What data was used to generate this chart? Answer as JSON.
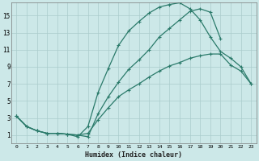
{
  "xlabel": "Humidex (Indice chaleur)",
  "bg_color": "#cce8e8",
  "grid_color": "#aacccc",
  "line_color": "#2a7a6a",
  "xlim": [
    -0.5,
    23.5
  ],
  "ylim": [
    0,
    16.5
  ],
  "xticks": [
    0,
    1,
    2,
    3,
    4,
    5,
    6,
    7,
    8,
    9,
    10,
    11,
    12,
    13,
    14,
    15,
    16,
    17,
    18,
    19,
    20,
    21,
    22,
    23
  ],
  "yticks": [
    1,
    3,
    5,
    7,
    9,
    11,
    13,
    15
  ],
  "line1_x": [
    0,
    1,
    2,
    3,
    4,
    5,
    6,
    7,
    8,
    9,
    10,
    11,
    12,
    13,
    14,
    15,
    16,
    17,
    18,
    19,
    20,
    21,
    22,
    23
  ],
  "line1_y": [
    3.2,
    2.0,
    1.5,
    1.2,
    1.2,
    1.1,
    1.0,
    0.8,
    3.5,
    5.5,
    7.2,
    8.7,
    9.8,
    11.0,
    12.5,
    13.5,
    14.5,
    15.5,
    15.8,
    15.4,
    12.3,
    null,
    null,
    null
  ],
  "line2_x": [
    0,
    1,
    2,
    3,
    4,
    5,
    6,
    7,
    8,
    9,
    10,
    11,
    12,
    13,
    14,
    15,
    16,
    17,
    18,
    19,
    20,
    21,
    22,
    23
  ],
  "line2_y": [
    3.2,
    2.0,
    1.5,
    1.2,
    1.2,
    1.1,
    0.8,
    2.0,
    6.0,
    8.8,
    11.5,
    13.2,
    14.3,
    15.3,
    16.0,
    16.3,
    16.5,
    15.8,
    14.5,
    12.5,
    10.8,
    10.0,
    9.0,
    7.0
  ],
  "line3_x": [
    0,
    1,
    2,
    3,
    4,
    5,
    6,
    7,
    8,
    9,
    10,
    11,
    12,
    13,
    14,
    15,
    16,
    17,
    18,
    19,
    20,
    21,
    22,
    23
  ],
  "line3_y": [
    3.2,
    2.0,
    1.5,
    1.2,
    1.2,
    1.1,
    1.0,
    1.2,
    2.8,
    4.2,
    5.5,
    6.3,
    7.0,
    7.8,
    8.5,
    9.1,
    9.5,
    10.0,
    10.3,
    10.5,
    10.5,
    9.2,
    8.5,
    7.0
  ]
}
